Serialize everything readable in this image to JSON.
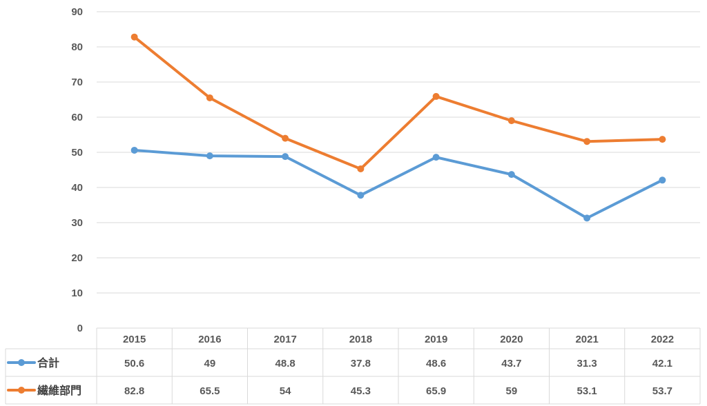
{
  "chart_data": {
    "type": "line",
    "title": "",
    "xlabel": "",
    "ylabel": "",
    "ylim": [
      0,
      90
    ],
    "yticks": [
      0,
      10,
      20,
      30,
      40,
      50,
      60,
      70,
      80,
      90
    ],
    "categories": [
      "2015",
      "2016",
      "2017",
      "2018",
      "2019",
      "2020",
      "2021",
      "2022"
    ],
    "grid": true,
    "legend": "data-table",
    "series": [
      {
        "name": "合計",
        "color": "#5b9bd5",
        "values": [
          50.6,
          49,
          48.8,
          37.8,
          48.6,
          43.7,
          31.3,
          42.1
        ],
        "labels": [
          "50.6",
          "49",
          "48.8",
          "37.8",
          "48.6",
          "43.7",
          "31.3",
          "42.1"
        ]
      },
      {
        "name": "繊維部門",
        "color": "#ed7d31",
        "values": [
          82.8,
          65.5,
          54,
          45.3,
          65.9,
          59,
          53.1,
          53.7
        ],
        "labels": [
          "82.8",
          "65.5",
          "54",
          "45.3",
          "65.9",
          "59",
          "53.1",
          "53.7"
        ]
      }
    ]
  }
}
